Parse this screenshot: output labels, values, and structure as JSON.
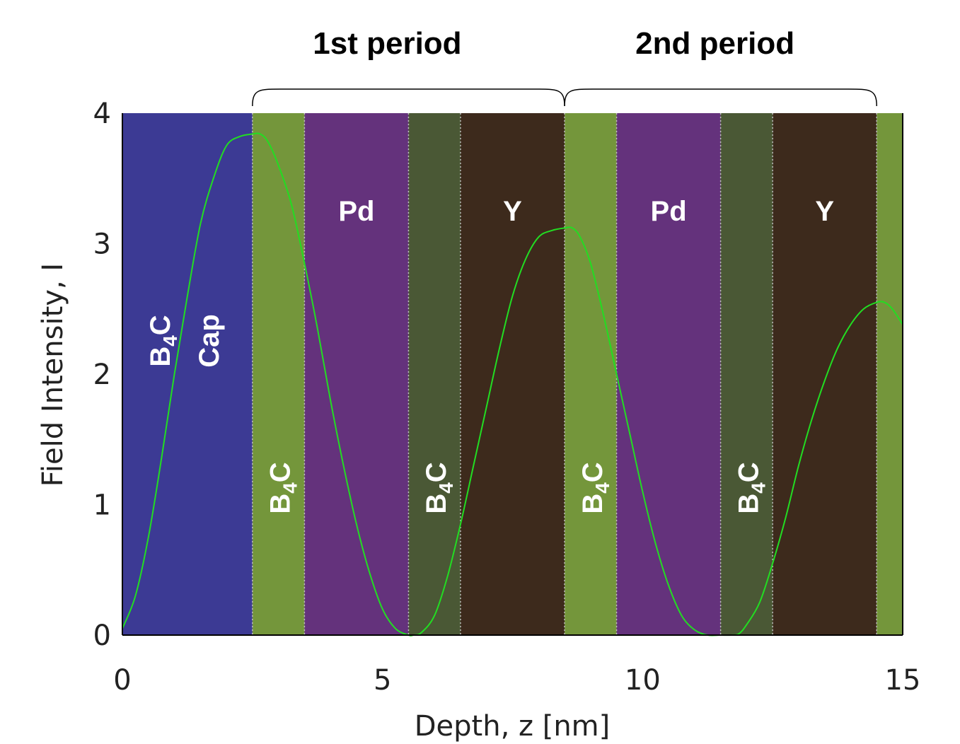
{
  "chart_data": {
    "type": "line",
    "xlabel": "Depth, z [nm]",
    "ylabel": "Field Intensity, I",
    "xlim": [
      0,
      15
    ],
    "ylim": [
      0,
      4
    ],
    "xticks": [
      0,
      5,
      10,
      15
    ],
    "yticks": [
      0,
      1,
      2,
      3,
      4
    ],
    "line_color": "#22dd22",
    "layers": [
      {
        "from": 0.0,
        "to": 2.5,
        "color": "#3c3a94",
        "label": "B4C",
        "label2": "Cap"
      },
      {
        "from": 2.5,
        "to": 3.5,
        "color": "#74963b",
        "label": "B4C",
        "label2": ""
      },
      {
        "from": 3.5,
        "to": 5.5,
        "color": "#64327c",
        "label": "Pd",
        "label2": ""
      },
      {
        "from": 5.5,
        "to": 6.5,
        "color": "#4a5835",
        "label": "B4C",
        "label2": ""
      },
      {
        "from": 6.5,
        "to": 8.5,
        "color": "#3d2a1c",
        "label": "Y",
        "label2": ""
      },
      {
        "from": 8.5,
        "to": 9.5,
        "color": "#74963b",
        "label": "B4C",
        "label2": ""
      },
      {
        "from": 9.5,
        "to": 11.5,
        "color": "#64327c",
        "label": "Pd",
        "label2": ""
      },
      {
        "from": 11.5,
        "to": 12.5,
        "color": "#4a5835",
        "label": "B4C",
        "label2": ""
      },
      {
        "from": 12.5,
        "to": 14.5,
        "color": "#3d2a1c",
        "label": "Y",
        "label2": ""
      },
      {
        "from": 14.5,
        "to": 15.0,
        "color": "#74963b",
        "label": "",
        "label2": ""
      }
    ],
    "periods": [
      {
        "label": "1st period",
        "from": 2.5,
        "to": 8.5
      },
      {
        "label": "2nd period",
        "from": 8.5,
        "to": 14.5
      }
    ],
    "series": [
      {
        "x": [
          0,
          0.25,
          0.5,
          0.75,
          1.0,
          1.25,
          1.5,
          1.75,
          2.0,
          2.25,
          2.5,
          2.65,
          2.8,
          3.0,
          3.25,
          3.5,
          3.75,
          4.0,
          4.25,
          4.5,
          4.75,
          5.0,
          5.25,
          5.5,
          5.6,
          5.75,
          6.0,
          6.25,
          6.5,
          6.75,
          7.0,
          7.25,
          7.5,
          7.75,
          8.0,
          8.25,
          8.5,
          8.65,
          8.8,
          9.0,
          9.25,
          9.5,
          9.75,
          10.0,
          10.25,
          10.5,
          10.75,
          11.0,
          11.25,
          11.5,
          11.7,
          11.85,
          12.0,
          12.25,
          12.5,
          12.75,
          13.0,
          13.25,
          13.5,
          13.75,
          14.0,
          14.25,
          14.5,
          14.65,
          14.8,
          15.0
        ],
        "y": [
          0.05,
          0.3,
          0.75,
          1.35,
          2.0,
          2.6,
          3.15,
          3.5,
          3.75,
          3.82,
          3.84,
          3.84,
          3.78,
          3.6,
          3.3,
          2.85,
          2.35,
          1.8,
          1.3,
          0.85,
          0.48,
          0.2,
          0.05,
          0.0,
          0.0,
          0.02,
          0.15,
          0.45,
          0.85,
          1.3,
          1.75,
          2.2,
          2.6,
          2.88,
          3.05,
          3.1,
          3.12,
          3.12,
          3.05,
          2.85,
          2.45,
          2.0,
          1.55,
          1.1,
          0.7,
          0.38,
          0.15,
          0.04,
          0.0,
          0.0,
          0.0,
          0.01,
          0.08,
          0.25,
          0.55,
          0.9,
          1.3,
          1.65,
          1.95,
          2.2,
          2.38,
          2.5,
          2.55,
          2.55,
          2.5,
          2.38
        ]
      }
    ]
  }
}
